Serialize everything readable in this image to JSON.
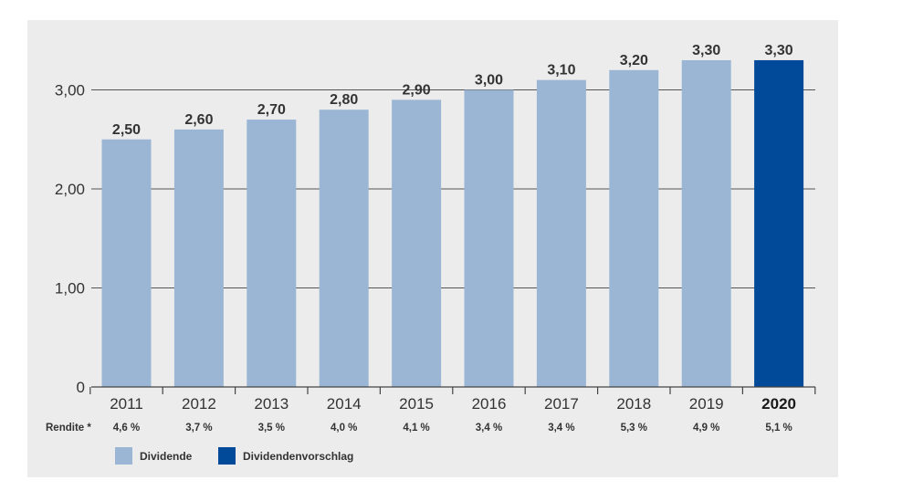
{
  "chart_data": {
    "type": "bar",
    "categories": [
      "2011",
      "2012",
      "2013",
      "2014",
      "2015",
      "2016",
      "2017",
      "2018",
      "2019",
      "2020"
    ],
    "values": [
      2.5,
      2.6,
      2.7,
      2.8,
      2.9,
      3.0,
      3.1,
      3.2,
      3.3,
      3.3
    ],
    "value_labels": [
      "2,50",
      "2,60",
      "2,70",
      "2,80",
      "2,90",
      "3,00",
      "3,10",
      "3,20",
      "3,30",
      "3,30"
    ],
    "highlight_index": 9,
    "ylim": [
      0,
      3.5
    ],
    "yticks": [
      0,
      1,
      2,
      3
    ],
    "ytick_labels": [
      "0",
      "1,00",
      "2,00",
      "3,00"
    ],
    "grid": true,
    "row_label": "Rendite *",
    "rendite": [
      "4,6 %",
      "3,7 %",
      "3,5 %",
      "4,0 %",
      "4,1 %",
      "3,4 %",
      "3,4 %",
      "5,3 %",
      "4,9 %",
      "5,1 %"
    ],
    "legend": [
      {
        "label": "Dividende",
        "color": "#9bb6d4"
      },
      {
        "label": "Dividendenvorschlag",
        "color": "#004a99"
      }
    ],
    "colors": {
      "bar": "#9bb6d4",
      "highlight": "#004a99",
      "grid": "#555555"
    }
  }
}
